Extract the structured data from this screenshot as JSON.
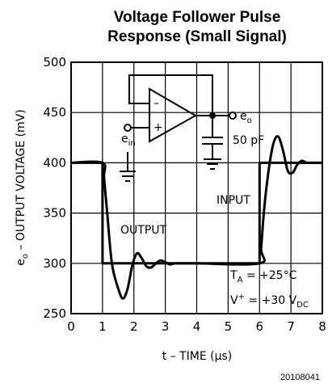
{
  "chart_data": {
    "type": "line",
    "title_lines": [
      "Voltage Follower Pulse",
      "Response (Small Signal)"
    ],
    "ylabel": "e",
    "ylabel_sub": "o",
    "ylabel_rest": " – OUTPUT VOLTAGE (mV)",
    "xlabel": "t – TIME (μs)",
    "xlim": [
      0,
      8
    ],
    "ylim": [
      250,
      500
    ],
    "x_ticks": [
      "0",
      "1",
      "2",
      "3",
      "4",
      "5",
      "6",
      "7",
      "8"
    ],
    "y_ticks": [
      "250",
      "300",
      "350",
      "400",
      "450",
      "500"
    ],
    "grid": true,
    "series": [
      {
        "name": "INPUT",
        "x": [
          0,
          1,
          1,
          6,
          6,
          8
        ],
        "y": [
          400,
          400,
          300,
          300,
          400,
          400
        ]
      },
      {
        "name": "OUTPUT",
        "x": [
          0,
          1.0,
          1.05,
          1.15,
          1.3,
          1.5,
          1.65,
          1.8,
          1.95,
          2.1,
          2.25,
          2.4,
          2.55,
          2.7,
          2.85,
          3.0,
          3.15,
          3.3,
          3.5,
          4.0,
          6.0,
          6.05,
          6.15,
          6.3,
          6.45,
          6.6,
          6.75,
          6.9,
          7.05,
          7.2,
          7.35,
          7.5,
          7.7,
          8.0
        ],
        "y": [
          400,
          400,
          385,
          350,
          300,
          275,
          265,
          275,
          298,
          310,
          305,
          297,
          296,
          300,
          303,
          301,
          299,
          300,
          300,
          300,
          300,
          315,
          355,
          395,
          420,
          426,
          412,
          392,
          390,
          398,
          402,
          400,
          400,
          400
        ]
      }
    ],
    "annotations": {
      "input": "INPUT",
      "output": "OUTPUT",
      "ta_main": "T",
      "ta_sub": "A",
      "ta_rest": " = +25°C",
      "v_main": "V",
      "v_sup": "+",
      "v_rest": " = +30 V",
      "v_sub": "DC",
      "cap": "50 pF",
      "ein_main": "e",
      "ein_sub": "in",
      "eo_main": "e",
      "eo_sub": "o",
      "opamp_minus": "–",
      "opamp_plus": "+"
    },
    "figure_code": "20108041"
  }
}
